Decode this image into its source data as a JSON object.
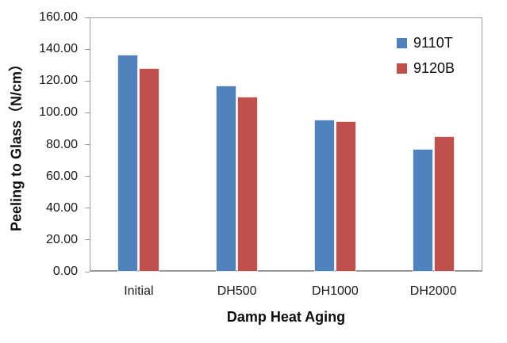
{
  "chart_data": {
    "type": "bar",
    "title": "",
    "categories": [
      "Initial",
      "DH500",
      "DH1000",
      "DH2000"
    ],
    "series": [
      {
        "name": "9110T",
        "color": "#4F81BD",
        "values": [
          136.5,
          117.0,
          95.5,
          77.5
        ]
      },
      {
        "name": "9120B",
        "color": "#C0504D",
        "values": [
          128.0,
          110.0,
          94.5,
          85.0
        ]
      }
    ],
    "xlabel": "Damp Heat Aging",
    "ylabel": "Peeling to Glass（N/cm）",
    "ylim": [
      0,
      160
    ],
    "ytick_step": 20,
    "ytick_labels": [
      "0.00",
      "20.00",
      "40.00",
      "60.00",
      "80.00",
      "100.00",
      "120.00",
      "140.00",
      "160.00"
    ],
    "grid": false,
    "legend_position": "top-right-inside"
  },
  "colors": {
    "frame": "#9a9a9a",
    "tick": "#9a9a9a",
    "text": "#1a1a1a",
    "series_blue": "#4F81BD",
    "series_red": "#C0504D"
  }
}
